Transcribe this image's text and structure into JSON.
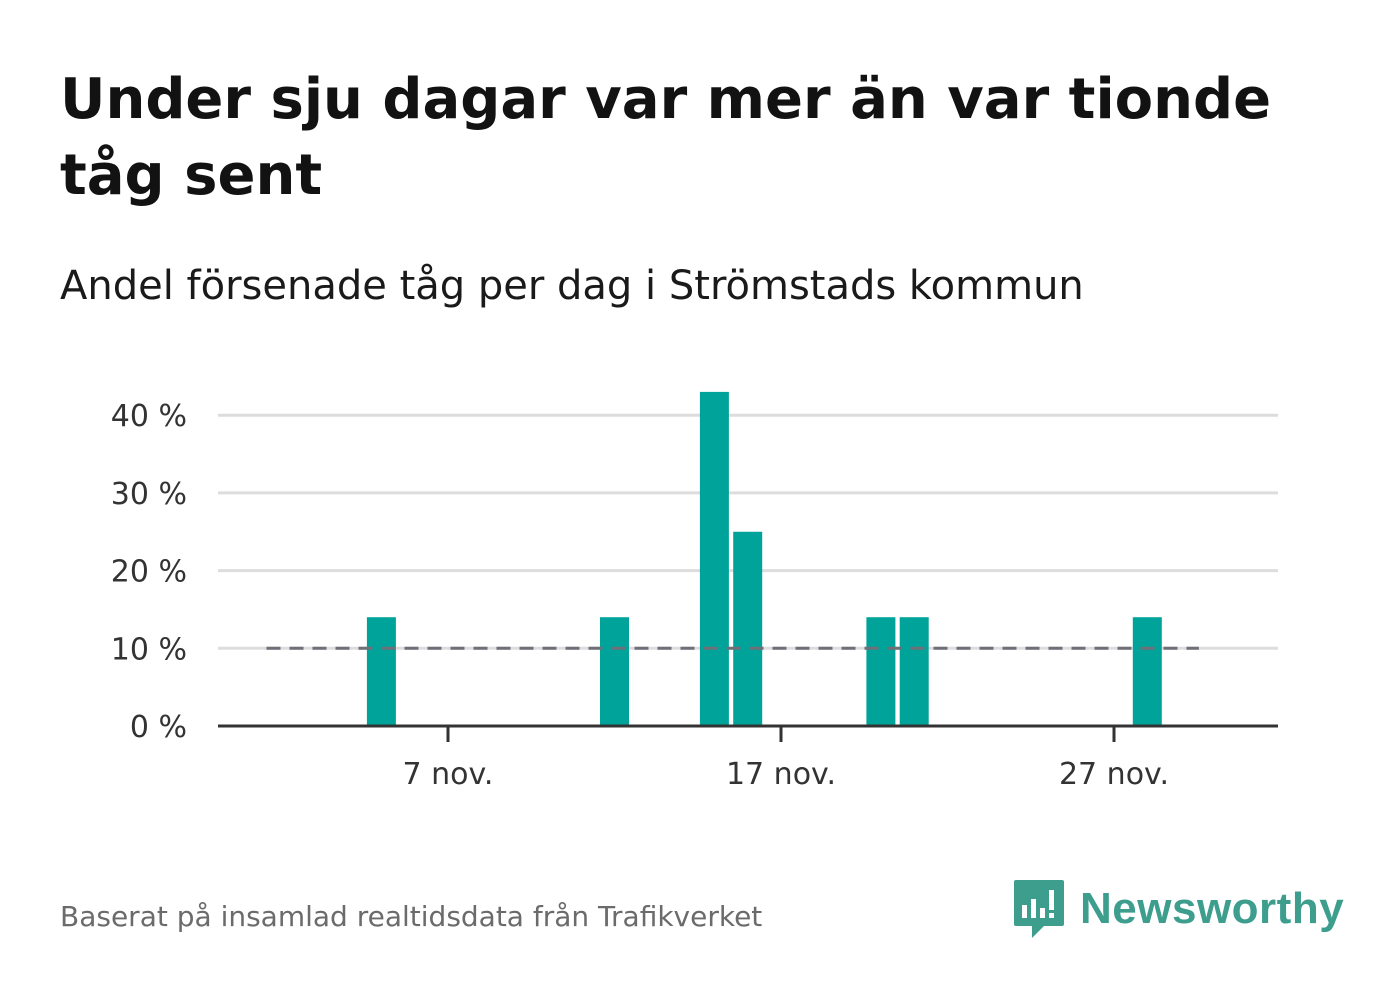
{
  "header": {
    "title": "Under sju dagar var mer än var tionde tåg sent",
    "subtitle": "Andel försenade tåg per dag i Strömstads kommun"
  },
  "footer": {
    "source": "Baserat på insamlad realtidsdata från Trafikverket",
    "brand": "Newsworthy"
  },
  "colors": {
    "bar": "#00a39a",
    "reference_line": "#6f6f78",
    "grid": "#dddddd",
    "axis": "#333333",
    "brand": "#3d9e8e"
  },
  "chart_data": {
    "type": "bar",
    "title": "Under sju dagar var mer än var tionde tåg sent",
    "subtitle": "Andel försenade tåg per dag i Strömstads kommun",
    "xlabel": "",
    "ylabel": "",
    "x_unit": "day of November",
    "x_range": [
      1,
      30
    ],
    "x_ticks": [
      {
        "day": 7,
        "label": "7 nov."
      },
      {
        "day": 17,
        "label": "17 nov."
      },
      {
        "day": 27,
        "label": "27 nov."
      }
    ],
    "ylim": [
      0,
      44
    ],
    "y_ticks": [
      {
        "value": 0,
        "label": "0 %"
      },
      {
        "value": 10,
        "label": "10 %"
      },
      {
        "value": 20,
        "label": "20 %"
      },
      {
        "value": 30,
        "label": "30 %"
      },
      {
        "value": 40,
        "label": "40 %"
      }
    ],
    "grid": true,
    "reference_line": {
      "value": 10,
      "style": "dashed",
      "from_day": 2,
      "to_day": 30
    },
    "series": [
      {
        "name": "Andel försenade tåg",
        "points": [
          {
            "day": 5,
            "value": 14
          },
          {
            "day": 12,
            "value": 14
          },
          {
            "day": 15,
            "value": 43
          },
          {
            "day": 16,
            "value": 25
          },
          {
            "day": 20,
            "value": 14
          },
          {
            "day": 21,
            "value": 14
          },
          {
            "day": 28,
            "value": 14
          }
        ]
      }
    ]
  }
}
